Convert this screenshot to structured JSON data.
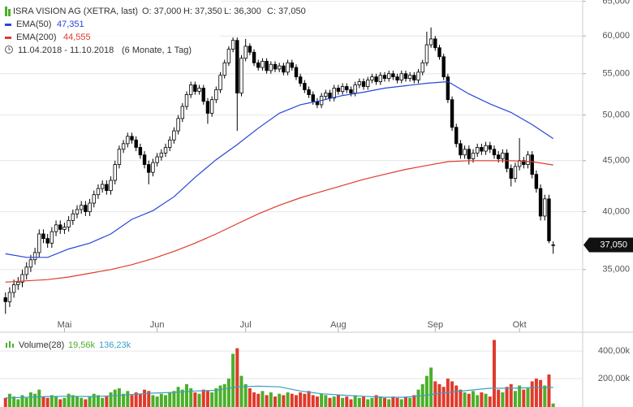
{
  "chart_data": [
    {
      "type": "candlestick",
      "title": "ISRA VISION AG (XETRA, last)",
      "ohlc_labels": [
        "O: 37,000",
        "H: 37,350",
        "L: 36,300",
        "C: 37,050"
      ],
      "date_range": "11.04.2018 - 11.10.2018",
      "period": "(6 Monate, 1 Tag)",
      "last_label": "37,050",
      "log_scale": true,
      "grid": true,
      "ylim": [
        30.8,
        65.2
      ],
      "yticks": [
        {
          "value": 35,
          "label": "35,000"
        },
        {
          "value": 40,
          "label": "40,000"
        },
        {
          "value": 45,
          "label": "45,000"
        },
        {
          "value": 50,
          "label": "50,000"
        },
        {
          "value": 55,
          "label": "55,000"
        },
        {
          "value": 60,
          "label": "60,000"
        },
        {
          "value": 65,
          "label": "65,000"
        }
      ],
      "xlim": [
        -1.3,
        137
      ],
      "xticks": [
        {
          "value": 14,
          "label": "Mai"
        },
        {
          "value": 36,
          "label": "Jun"
        },
        {
          "value": 57,
          "label": "Jul"
        },
        {
          "value": 79,
          "label": "Aug"
        },
        {
          "value": 102,
          "label": "Sep"
        },
        {
          "value": 122,
          "label": "Okt"
        }
      ],
      "up_color": "#ffffff",
      "down_color": "#000000",
      "candles": [
        [
          32.8,
          33.2,
          31.6,
          32.5
        ],
        [
          32.5,
          33.6,
          32.1,
          33.2
        ],
        [
          33.2,
          34.2,
          32.8,
          33.8
        ],
        [
          33.8,
          34.4,
          33.4,
          34.0
        ],
        [
          34.0,
          35.0,
          33.6,
          34.6
        ],
        [
          34.6,
          35.6,
          34.2,
          35.2
        ],
        [
          35.2,
          36.2,
          34.8,
          35.8
        ],
        [
          35.8,
          36.8,
          35.4,
          36.4
        ],
        [
          36.4,
          38.4,
          36.0,
          38.0
        ],
        [
          38.0,
          38.4,
          37.2,
          37.6
        ],
        [
          37.6,
          38.0,
          36.8,
          37.2
        ],
        [
          37.2,
          38.6,
          36.8,
          38.2
        ],
        [
          38.2,
          39.2,
          37.8,
          38.8
        ],
        [
          38.8,
          39.2,
          38.0,
          38.4
        ],
        [
          38.4,
          39.0,
          38.0,
          38.6
        ],
        [
          38.6,
          39.6,
          38.2,
          39.2
        ],
        [
          39.2,
          40.2,
          38.8,
          39.8
        ],
        [
          39.8,
          40.6,
          39.4,
          40.2
        ],
        [
          40.2,
          41.0,
          39.8,
          40.6
        ],
        [
          40.6,
          41.0,
          39.6,
          40.0
        ],
        [
          40.0,
          41.2,
          39.6,
          40.8
        ],
        [
          40.8,
          42.0,
          40.4,
          41.6
        ],
        [
          41.6,
          42.6,
          41.2,
          42.2
        ],
        [
          42.2,
          43.0,
          41.8,
          42.6
        ],
        [
          42.6,
          43.0,
          41.6,
          42.0
        ],
        [
          42.0,
          43.4,
          41.6,
          43.0
        ],
        [
          43.0,
          45.0,
          42.6,
          44.6
        ],
        [
          44.6,
          46.6,
          44.2,
          46.2
        ],
        [
          46.2,
          47.2,
          45.8,
          46.8
        ],
        [
          46.8,
          48.0,
          46.4,
          47.6
        ],
        [
          47.6,
          48.0,
          46.8,
          47.2
        ],
        [
          47.2,
          47.6,
          46.0,
          46.4
        ],
        [
          46.4,
          46.8,
          45.2,
          45.6
        ],
        [
          45.6,
          46.0,
          44.2,
          44.6
        ],
        [
          44.6,
          45.0,
          42.6,
          43.8
        ],
        [
          43.8,
          45.2,
          43.4,
          44.8
        ],
        [
          44.8,
          45.8,
          44.4,
          45.4
        ],
        [
          45.4,
          46.2,
          45.0,
          45.8
        ],
        [
          45.8,
          46.8,
          45.4,
          46.4
        ],
        [
          46.4,
          47.6,
          46.0,
          47.2
        ],
        [
          47.2,
          48.6,
          46.8,
          48.2
        ],
        [
          48.2,
          50.0,
          47.8,
          49.6
        ],
        [
          49.6,
          51.4,
          49.2,
          51.0
        ],
        [
          51.0,
          52.8,
          50.6,
          52.4
        ],
        [
          52.4,
          54.0,
          52.0,
          53.6
        ],
        [
          53.6,
          54.0,
          52.4,
          52.8
        ],
        [
          52.8,
          53.6,
          52.4,
          53.2
        ],
        [
          53.2,
          53.6,
          51.2,
          51.6
        ],
        [
          51.6,
          52.0,
          49.0,
          50.2
        ],
        [
          50.2,
          52.2,
          49.8,
          51.8
        ],
        [
          51.8,
          53.4,
          51.4,
          53.0
        ],
        [
          53.0,
          55.2,
          52.6,
          54.8
        ],
        [
          54.8,
          56.8,
          54.4,
          56.4
        ],
        [
          56.4,
          58.6,
          56.0,
          58.2
        ],
        [
          58.2,
          59.8,
          57.8,
          59.4
        ],
        [
          59.4,
          59.8,
          48.2,
          52.6
        ],
        [
          52.6,
          57.4,
          52.2,
          57.0
        ],
        [
          57.0,
          59.6,
          56.6,
          58.6
        ],
        [
          58.6,
          59.0,
          57.4,
          57.8
        ],
        [
          57.8,
          58.2,
          56.0,
          56.4
        ],
        [
          56.4,
          56.8,
          55.4,
          55.8
        ],
        [
          55.8,
          57.0,
          55.4,
          56.6
        ],
        [
          56.6,
          57.0,
          55.0,
          55.4
        ],
        [
          55.4,
          56.6,
          55.0,
          56.2
        ],
        [
          56.2,
          56.6,
          55.2,
          55.6
        ],
        [
          55.6,
          56.4,
          55.2,
          56.0
        ],
        [
          56.0,
          56.4,
          54.8,
          55.2
        ],
        [
          55.2,
          56.8,
          54.8,
          56.4
        ],
        [
          56.4,
          56.8,
          55.4,
          55.8
        ],
        [
          55.8,
          56.2,
          54.2,
          54.6
        ],
        [
          54.6,
          55.0,
          53.4,
          53.8
        ],
        [
          53.8,
          54.2,
          52.6,
          53.0
        ],
        [
          53.0,
          53.4,
          52.0,
          52.4
        ],
        [
          52.4,
          52.8,
          51.2,
          51.6
        ],
        [
          51.6,
          52.0,
          50.8,
          51.2
        ],
        [
          51.2,
          52.6,
          50.8,
          52.2
        ],
        [
          52.2,
          53.0,
          51.8,
          52.6
        ],
        [
          52.6,
          53.0,
          51.6,
          52.0
        ],
        [
          52.0,
          53.6,
          51.6,
          53.2
        ],
        [
          53.2,
          53.6,
          52.4,
          52.8
        ],
        [
          52.8,
          53.8,
          52.4,
          53.4
        ],
        [
          53.4,
          53.8,
          52.6,
          53.0
        ],
        [
          53.0,
          53.4,
          52.2,
          52.6
        ],
        [
          52.6,
          54.0,
          52.2,
          53.6
        ],
        [
          53.6,
          54.4,
          53.2,
          54.0
        ],
        [
          54.0,
          54.4,
          53.0,
          53.4
        ],
        [
          53.4,
          54.6,
          53.0,
          54.2
        ],
        [
          54.2,
          55.0,
          53.8,
          54.6
        ],
        [
          54.6,
          55.0,
          53.6,
          54.0
        ],
        [
          54.0,
          55.2,
          53.6,
          54.8
        ],
        [
          54.8,
          55.2,
          54.0,
          54.4
        ],
        [
          54.4,
          55.4,
          54.0,
          55.0
        ],
        [
          55.0,
          55.4,
          54.2,
          54.6
        ],
        [
          54.6,
          55.0,
          53.8,
          54.2
        ],
        [
          54.2,
          55.4,
          53.8,
          55.0
        ],
        [
          55.0,
          55.4,
          54.0,
          54.4
        ],
        [
          54.4,
          55.2,
          54.0,
          54.8
        ],
        [
          54.8,
          55.2,
          53.8,
          54.2
        ],
        [
          54.2,
          55.6,
          53.8,
          55.2
        ],
        [
          55.2,
          56.8,
          54.8,
          56.4
        ],
        [
          56.4,
          60.6,
          56.0,
          58.8
        ],
        [
          58.8,
          61.2,
          58.4,
          59.6
        ],
        [
          59.6,
          60.0,
          58.0,
          58.4
        ],
        [
          58.4,
          58.8,
          56.8,
          57.2
        ],
        [
          57.2,
          57.6,
          54.2,
          54.6
        ],
        [
          54.6,
          55.0,
          51.4,
          51.8
        ],
        [
          51.8,
          52.2,
          48.2,
          48.6
        ],
        [
          48.6,
          49.0,
          46.4,
          46.8
        ],
        [
          46.8,
          47.2,
          45.2,
          45.6
        ],
        [
          45.6,
          46.6,
          45.2,
          46.2
        ],
        [
          46.2,
          46.6,
          44.6,
          45.2
        ],
        [
          45.2,
          46.2,
          44.8,
          45.8
        ],
        [
          45.8,
          46.8,
          45.4,
          46.4
        ],
        [
          46.4,
          46.8,
          45.6,
          46.0
        ],
        [
          46.0,
          47.0,
          45.6,
          46.6
        ],
        [
          46.6,
          47.0,
          45.8,
          46.2
        ],
        [
          46.2,
          46.6,
          45.2,
          45.6
        ],
        [
          45.6,
          46.0,
          44.8,
          45.2
        ],
        [
          45.2,
          46.2,
          44.8,
          45.8
        ],
        [
          45.8,
          46.2,
          43.8,
          44.2
        ],
        [
          44.2,
          44.6,
          42.4,
          43.2
        ],
        [
          43.2,
          44.8,
          42.8,
          44.4
        ],
        [
          44.4,
          47.4,
          44.0,
          45.0
        ],
        [
          45.0,
          45.4,
          44.2,
          44.6
        ],
        [
          44.6,
          46.0,
          44.2,
          45.6
        ],
        [
          45.6,
          46.0,
          43.2,
          43.6
        ],
        [
          43.6,
          44.0,
          41.8,
          42.2
        ],
        [
          42.2,
          42.6,
          39.2,
          39.6
        ],
        [
          39.6,
          41.6,
          39.2,
          41.2
        ],
        [
          41.2,
          41.6,
          37.2,
          37.4
        ],
        [
          37.0,
          37.35,
          36.3,
          37.05
        ]
      ],
      "series": [
        {
          "name": "EMA(50)",
          "value_label": "47,351",
          "color": "#2746d8",
          "x": [
            0,
            5,
            10,
            15,
            20,
            25,
            30,
            35,
            40,
            45,
            50,
            55,
            60,
            65,
            70,
            75,
            80,
            85,
            90,
            95,
            100,
            105,
            110,
            115,
            120,
            125,
            130
          ],
          "values": [
            36.3,
            36.0,
            36.0,
            36.7,
            37.2,
            38.0,
            39.3,
            40.1,
            41.4,
            43.3,
            45.1,
            46.7,
            48.5,
            50.2,
            51.2,
            51.7,
            52.3,
            52.7,
            53.2,
            53.5,
            53.8,
            54.0,
            52.5,
            51.3,
            50.3,
            48.9,
            47.351
          ]
        },
        {
          "name": "EMA(200)",
          "value_label": "44,555",
          "color": "#e03a2c",
          "x": [
            0,
            5,
            10,
            15,
            20,
            25,
            30,
            35,
            40,
            45,
            50,
            55,
            60,
            65,
            70,
            75,
            80,
            85,
            90,
            95,
            100,
            105,
            110,
            115,
            120,
            125,
            130
          ],
          "values": [
            34.0,
            34.1,
            34.2,
            34.4,
            34.7,
            35.0,
            35.4,
            35.9,
            36.5,
            37.2,
            38.0,
            38.9,
            39.8,
            40.6,
            41.3,
            41.9,
            42.5,
            43.1,
            43.6,
            44.1,
            44.5,
            44.9,
            45.0,
            45.0,
            45.0,
            44.9,
            44.555
          ]
        }
      ]
    },
    {
      "type": "bar",
      "name": "Volume(28)",
      "last_label": "19,56k",
      "up_color": "#4caf2a",
      "down_color": "#e03a2c",
      "ylim": [
        0,
        530
      ],
      "yticks": [
        {
          "value": 200,
          "label": "200,00k"
        },
        {
          "value": 400,
          "label": "400,00k"
        }
      ],
      "values": [
        60,
        90,
        70,
        50,
        80,
        60,
        100,
        90,
        120,
        70,
        60,
        80,
        70,
        50,
        60,
        90,
        80,
        70,
        60,
        50,
        70,
        90,
        80,
        60,
        70,
        100,
        120,
        130,
        90,
        110,
        80,
        100,
        90,
        120,
        110,
        80,
        70,
        90,
        80,
        100,
        110,
        140,
        120,
        160,
        130,
        100,
        90,
        120,
        110,
        100,
        130,
        150,
        160,
        200,
        380,
        420,
        220,
        160,
        130,
        100,
        90,
        110,
        80,
        100,
        70,
        90,
        80,
        100,
        90,
        80,
        100,
        90,
        110,
        80,
        70,
        90,
        80,
        60,
        70,
        80,
        60,
        70,
        50,
        80,
        60,
        70,
        50,
        60,
        80,
        70,
        60,
        50,
        70,
        60,
        50,
        70,
        60,
        80,
        120,
        160,
        220,
        280,
        180,
        160,
        140,
        200,
        180,
        150,
        120,
        100,
        90,
        110,
        80,
        100,
        90,
        70,
        480,
        120,
        100,
        140,
        160,
        110,
        150,
        120,
        130,
        180,
        200,
        190,
        150,
        230,
        19.56
      ],
      "series": [
        {
          "name": "",
          "value_label": "136,23k",
          "color": "#3a9fc4",
          "x": [
            0,
            5,
            10,
            15,
            20,
            25,
            30,
            35,
            40,
            45,
            50,
            55,
            60,
            65,
            70,
            75,
            80,
            85,
            90,
            95,
            100,
            105,
            110,
            115,
            120,
            125,
            130
          ],
          "values": [
            60,
            65,
            70,
            72,
            70,
            75,
            85,
            95,
            100,
            110,
            115,
            140,
            145,
            140,
            110,
            90,
            80,
            72,
            65,
            65,
            80,
            100,
            115,
            130,
            130,
            135,
            136.23
          ]
        }
      ]
    }
  ]
}
